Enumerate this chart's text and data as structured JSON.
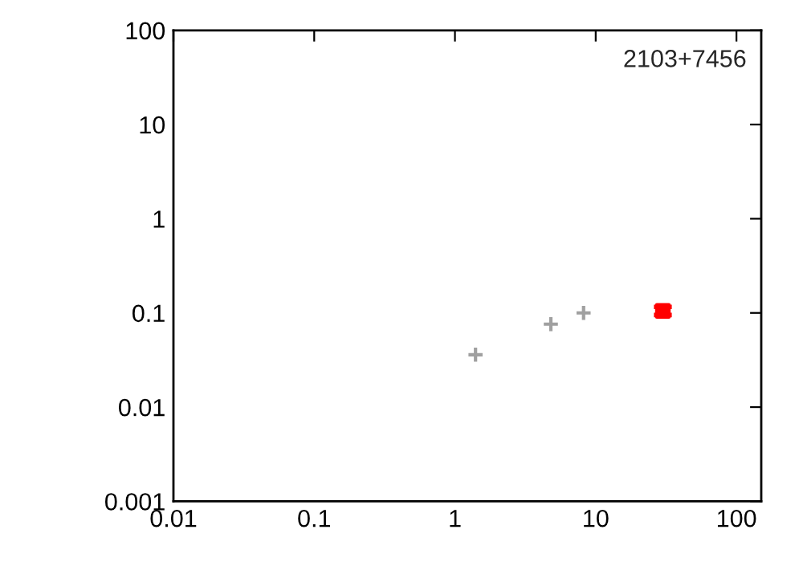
{
  "chart_data": {
    "type": "scatter",
    "log": "xy",
    "xlim": [
      0.01,
      150
    ],
    "ylim": [
      0.001,
      100
    ],
    "xticks": [
      0.01,
      0.1,
      1,
      10,
      100
    ],
    "yticks": [
      0.001,
      0.01,
      0.1,
      1,
      10,
      100
    ],
    "annotations": [
      "2103+7456"
    ],
    "grid": false,
    "legend": false,
    "series": [
      {
        "color": "#a0a0a0",
        "marker": "cross",
        "x": [
          1.4,
          4.8,
          8.2
        ],
        "values": [
          0.036,
          0.076,
          0.1
        ]
      },
      {
        "color": "#ff0000",
        "marker": "square",
        "x": [
          30
        ],
        "values": [
          0.105
        ],
        "errors": [
          [
            0.095,
            0.116
          ]
        ]
      }
    ]
  }
}
